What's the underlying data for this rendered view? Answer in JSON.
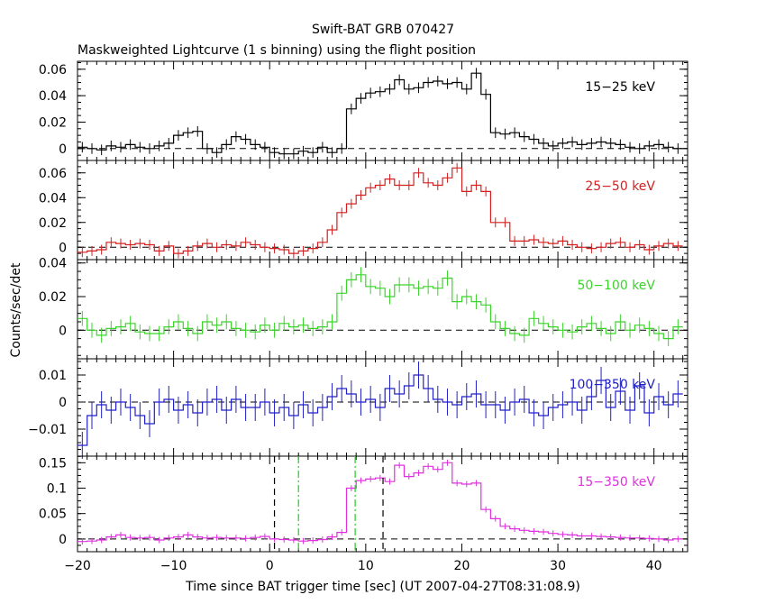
{
  "title": "Swift-BAT GRB 070427",
  "subtitle": "Maskweighted Lightcurve (1 s binning) using the flight position",
  "chart_data": {
    "type": "line",
    "style": "step histogram with error bars, stacked panels sharing x axis",
    "xlabel": "Time since BAT trigger time [sec] (UT 2007-04-27T08:31:08.9)",
    "ylabel": "Counts/sec/det",
    "xlim": [
      -20,
      43.5
    ],
    "x_ticks": [
      -20,
      -10,
      0,
      10,
      20,
      30,
      40
    ],
    "x_tick_labels": [
      "−20",
      "−10",
      "0",
      "10",
      "20",
      "30",
      "40"
    ],
    "bin_start": -20,
    "bin_width": 1,
    "panels": [
      {
        "name": "15−25 keV",
        "color": "#000000",
        "ylim": [
          -0.009,
          0.066
        ],
        "yticks": [
          0,
          0.02,
          0.04,
          0.06
        ],
        "ytick_labels": [
          "0",
          "0.02",
          "0.04",
          "0.06"
        ],
        "err": 0.004,
        "values": [
          0.001,
          0.0,
          -0.001,
          0.002,
          0.001,
          0.003,
          0.001,
          0.0,
          0.002,
          0.004,
          0.01,
          0.012,
          0.013,
          0.0,
          -0.003,
          0.003,
          0.009,
          0.007,
          0.003,
          0.001,
          -0.003,
          -0.004,
          -0.004,
          -0.002,
          -0.003,
          0.001,
          -0.003,
          0.0,
          0.03,
          0.038,
          0.042,
          0.043,
          0.045,
          0.052,
          0.045,
          0.046,
          0.05,
          0.051,
          0.049,
          0.05,
          0.045,
          0.057,
          0.041,
          0.012,
          0.011,
          0.012,
          0.009,
          0.007,
          0.004,
          0.002,
          0.004,
          0.005,
          0.003,
          0.004,
          0.005,
          0.004,
          0.003,
          0.001,
          0.0,
          0.002,
          0.003,
          0.001,
          0.0
        ]
      },
      {
        "name": "25−50 keV",
        "color": "#d42020",
        "ylim": [
          -0.01,
          0.07
        ],
        "yticks": [
          0,
          0.02,
          0.04,
          0.06
        ],
        "ytick_labels": [
          "0",
          "0.02",
          "0.04",
          "0.06"
        ],
        "err": 0.004,
        "values": [
          -0.004,
          -0.003,
          -0.002,
          0.004,
          0.003,
          0.002,
          0.003,
          0.002,
          -0.003,
          0.001,
          -0.005,
          -0.003,
          0.001,
          0.003,
          0.0,
          0.002,
          0.001,
          0.004,
          0.002,
          0.0,
          -0.001,
          -0.002,
          -0.005,
          -0.003,
          -0.001,
          0.004,
          0.014,
          0.028,
          0.035,
          0.042,
          0.048,
          0.05,
          0.055,
          0.05,
          0.05,
          0.06,
          0.052,
          0.05,
          0.056,
          0.064,
          0.045,
          0.05,
          0.045,
          0.02,
          0.02,
          0.005,
          0.005,
          0.006,
          0.004,
          0.003,
          0.005,
          0.002,
          0.0,
          -0.001,
          0.0,
          0.003,
          0.004,
          0.0,
          0.002,
          -0.002,
          0.001,
          0.003,
          0.001
        ]
      },
      {
        "name": "50−100 keV",
        "color": "#3ad42a",
        "ylim": [
          -0.017,
          0.042
        ],
        "yticks": [
          0,
          0.02,
          0.04
        ],
        "ytick_labels": [
          "0",
          "0.02",
          "0.04"
        ],
        "err": 0.0045,
        "values": [
          0.007,
          0.0,
          -0.003,
          0.001,
          0.002,
          0.004,
          -0.001,
          -0.002,
          -0.002,
          0.002,
          0.005,
          0.001,
          -0.002,
          0.005,
          0.003,
          0.005,
          0.001,
          0.0,
          -0.001,
          0.003,
          0.0,
          0.004,
          0.002,
          0.003,
          0.001,
          0.002,
          0.005,
          0.022,
          0.03,
          0.033,
          0.026,
          0.025,
          0.02,
          0.027,
          0.027,
          0.025,
          0.026,
          0.025,
          0.031,
          0.017,
          0.02,
          0.017,
          0.015,
          0.005,
          0.001,
          -0.002,
          -0.003,
          0.007,
          0.004,
          0.002,
          0.0,
          -0.001,
          0.002,
          0.004,
          0.001,
          -0.002,
          0.005,
          0.0,
          0.003,
          0.001,
          -0.002,
          -0.005,
          0.002
        ]
      },
      {
        "name": "100−350 keV",
        "color": "#2020c8",
        "ylim": [
          -0.02,
          0.016
        ],
        "yticks": [
          -0.01,
          0,
          0.01
        ],
        "ytick_labels": [
          "−0.01",
          "0",
          "0.01"
        ],
        "err": 0.005,
        "values": [
          -0.016,
          -0.005,
          -0.001,
          -0.003,
          0.0,
          -0.002,
          -0.005,
          -0.008,
          0.0,
          0.001,
          -0.003,
          -0.001,
          -0.004,
          0.0,
          0.001,
          -0.003,
          0.001,
          -0.002,
          -0.002,
          0.0,
          -0.004,
          -0.002,
          -0.005,
          -0.001,
          -0.004,
          -0.002,
          0.002,
          0.005,
          0.003,
          0.0,
          0.001,
          -0.002,
          0.005,
          0.003,
          0.006,
          0.01,
          0.005,
          0.001,
          0.0,
          -0.001,
          0.002,
          0.003,
          -0.001,
          -0.001,
          -0.003,
          0.0,
          0.001,
          -0.004,
          -0.005,
          -0.002,
          -0.001,
          0.0,
          -0.003,
          0.002,
          0.008,
          -0.002,
          0.004,
          -0.003,
          0.006,
          -0.004,
          0.002,
          -0.001,
          0.003
        ]
      },
      {
        "name": "15−350 keV",
        "color": "#e030e0",
        "ylim": [
          -0.025,
          0.163
        ],
        "yticks": [
          0,
          0.05,
          0.1,
          0.15
        ],
        "ytick_labels": [
          "0",
          "0.05",
          "0.1",
          "0.15"
        ],
        "err": 0.006,
        "values": [
          -0.005,
          -0.004,
          -0.002,
          0.004,
          0.008,
          0.003,
          0.002,
          0.003,
          -0.002,
          0.002,
          0.004,
          0.008,
          0.004,
          0.002,
          0.003,
          0.002,
          0.002,
          0.001,
          0.003,
          0.005,
          0.0,
          -0.001,
          -0.002,
          -0.004,
          -0.003,
          -0.001,
          0.004,
          0.013,
          0.1,
          0.115,
          0.118,
          0.12,
          0.113,
          0.145,
          0.123,
          0.13,
          0.143,
          0.137,
          0.15,
          0.11,
          0.108,
          0.11,
          0.058,
          0.04,
          0.025,
          0.02,
          0.017,
          0.015,
          0.014,
          0.011,
          0.009,
          0.008,
          0.006,
          0.006,
          0.005,
          0.004,
          0.003,
          0.002,
          0.002,
          0.001,
          0.0,
          -0.002,
          0.0
        ]
      }
    ],
    "markers": [
      {
        "x": 0.5,
        "color": "#000000",
        "style": "dashed"
      },
      {
        "x": 3.0,
        "color": "#22cc22",
        "style": "dashdot"
      },
      {
        "x": 8.9,
        "color": "#22cc22",
        "style": "dashdot"
      },
      {
        "x": 11.8,
        "color": "#000000",
        "style": "dashed"
      }
    ]
  }
}
